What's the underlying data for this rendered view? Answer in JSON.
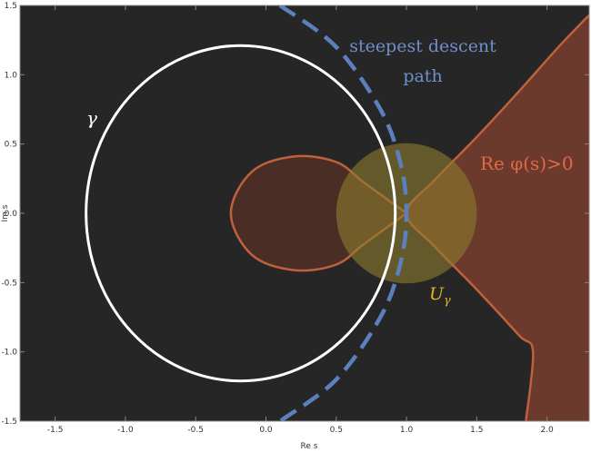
{
  "chart_data": {
    "type": "contour-plot",
    "xlabel": "Re s",
    "ylabel": "Im s",
    "xlim": [
      -1.75,
      2.3
    ],
    "ylim": [
      -1.5,
      1.5
    ],
    "x_ticks": [
      -1.5,
      -1.0,
      -0.5,
      0.0,
      0.5,
      1.0,
      1.5,
      2.0
    ],
    "x_tick_labels": [
      "-1.5",
      "-1.0",
      "-0.5",
      "0.0",
      "0.5",
      "1.0",
      "1.5",
      "2.0"
    ],
    "y_ticks": [
      -1.5,
      -1.0,
      -0.5,
      0.0,
      0.5,
      1.0,
      1.5
    ],
    "y_tick_labels": [
      "-1.5",
      "-1.0",
      "-0.5",
      "0.0",
      "0.5",
      "1.0",
      "1.5"
    ],
    "colors": {
      "background": "#262626",
      "region": "#6b3a2c",
      "region_edge": "#c0603c",
      "contour": "#ffffff",
      "descent": "#5b80bd",
      "neighborhood": "#8c7b2d",
      "annotation_orange": "#e06a45",
      "annotation_blue": "#6f8fc9",
      "annotation_gold": "#e6b428"
    },
    "saddle_point": [
      1.0,
      0.0
    ],
    "neighborhood": {
      "center": [
        1.0,
        0.0
      ],
      "radius": 0.5
    },
    "contour_gamma": {
      "center": [
        -0.18,
        0.0
      ],
      "rx": 1.1,
      "ry": 1.21
    },
    "series": [
      {
        "name": "gamma",
        "points": [
          [
            0.92,
            0.0
          ],
          [
            0.89,
            0.42
          ],
          [
            0.8,
            0.73
          ],
          [
            0.6,
            0.98
          ],
          [
            0.35,
            1.15
          ],
          [
            -0.18,
            1.21
          ],
          [
            -0.7,
            1.12
          ],
          [
            -1.02,
            0.82
          ],
          [
            -1.22,
            0.4
          ],
          [
            -1.28,
            0.0
          ],
          [
            -1.22,
            -0.4
          ],
          [
            -1.02,
            -0.82
          ],
          [
            -0.7,
            -1.12
          ],
          [
            -0.18,
            -1.21
          ],
          [
            0.35,
            -1.15
          ],
          [
            0.6,
            -0.98
          ],
          [
            0.8,
            -0.73
          ],
          [
            0.89,
            -0.42
          ],
          [
            0.92,
            0.0
          ]
        ]
      },
      {
        "name": "steepest descent path",
        "points": [
          [
            0.1,
            1.5
          ],
          [
            0.5,
            1.2
          ],
          [
            0.82,
            0.74
          ],
          [
            0.96,
            0.35
          ],
          [
            1.0,
            0.0
          ],
          [
            0.96,
            -0.35
          ],
          [
            0.82,
            -0.74
          ],
          [
            0.5,
            -1.2
          ],
          [
            0.1,
            -1.5
          ]
        ]
      },
      {
        "name": "Re φ(s)=0 boundary (right branch)",
        "points": [
          [
            2.3,
            1.43
          ],
          [
            2.1,
            1.22
          ],
          [
            1.8,
            0.88
          ],
          [
            1.5,
            0.55
          ],
          [
            1.2,
            0.24
          ],
          [
            1.0,
            0.0
          ],
          [
            1.2,
            -0.24
          ],
          [
            1.5,
            -0.55
          ],
          [
            1.8,
            -0.88
          ],
          [
            1.9,
            -1.0
          ],
          [
            1.85,
            -1.5
          ]
        ]
      },
      {
        "name": "Re φ(s)=0 boundary (loop)",
        "points": [
          [
            1.0,
            0.0
          ],
          [
            0.7,
            0.22
          ],
          [
            0.5,
            0.37
          ],
          [
            0.2,
            0.41
          ],
          [
            -0.1,
            0.3
          ],
          [
            -0.25,
            0.0
          ],
          [
            -0.1,
            -0.3
          ],
          [
            0.2,
            -0.41
          ],
          [
            0.5,
            -0.37
          ],
          [
            0.7,
            -0.22
          ],
          [
            1.0,
            0.0
          ]
        ]
      }
    ],
    "annotations": {
      "gamma_label": "γ",
      "steepest_line1": "steepest descent",
      "steepest_line2": "path",
      "re_phi_label": "Re φ(s)>0",
      "u_gamma_main": "U",
      "u_gamma_sub": "γ"
    },
    "grid": false,
    "legend": "none"
  }
}
